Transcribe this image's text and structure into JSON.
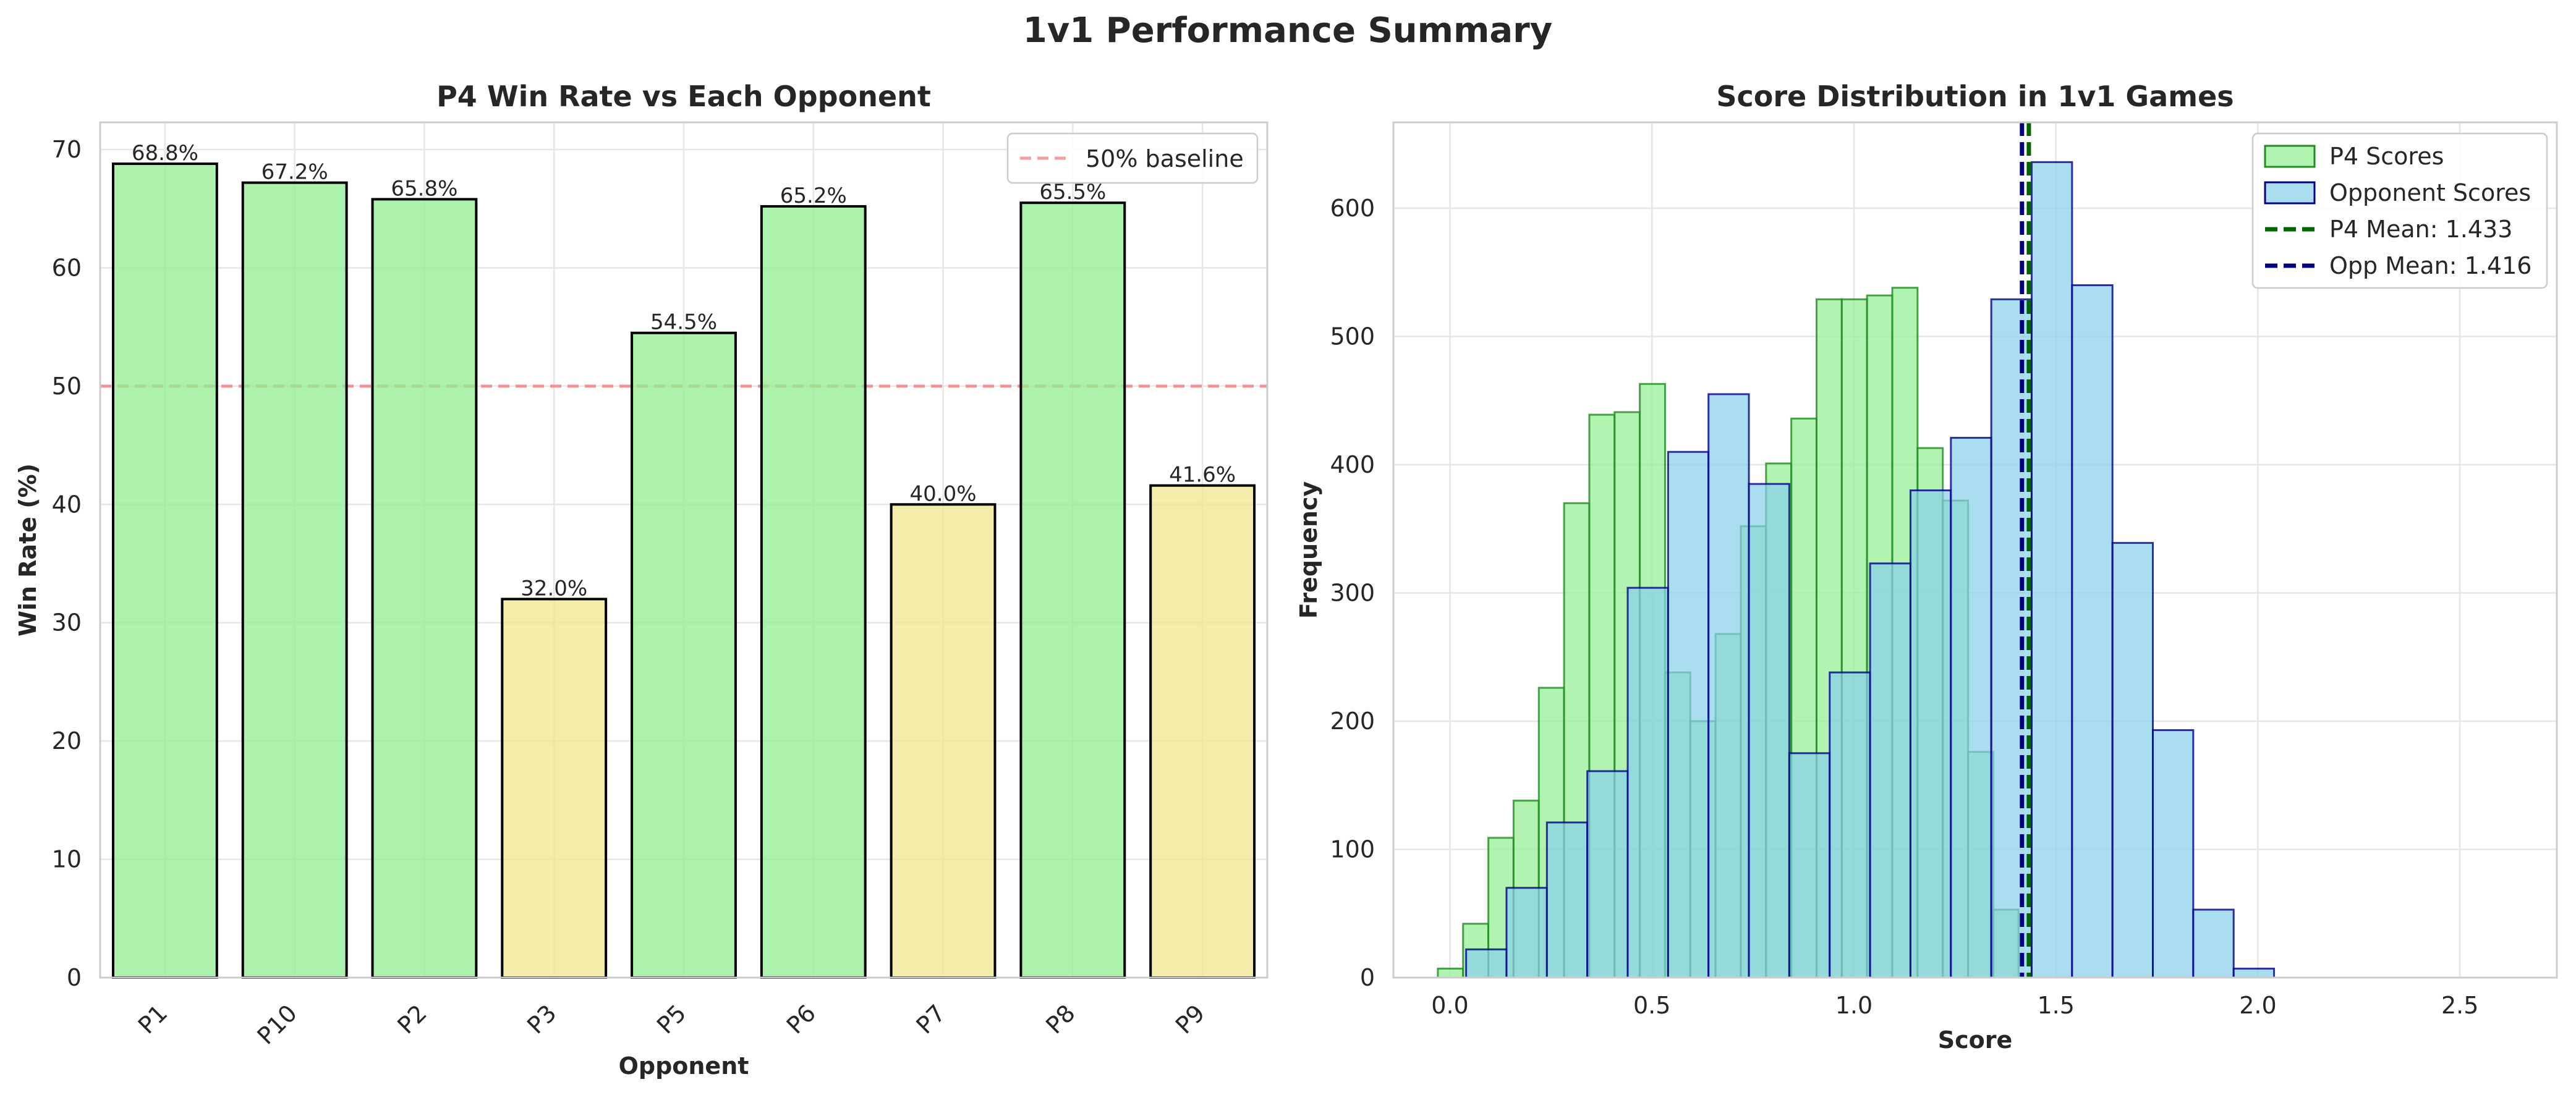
{
  "figure": {
    "title": "1v1 Performance Summary"
  },
  "chart_data": [
    {
      "type": "bar",
      "title": "P4 Win Rate vs Each Opponent",
      "xlabel": "Opponent",
      "ylabel": "Win Rate (%)",
      "categories": [
        "P1",
        "P10",
        "P2",
        "P3",
        "P5",
        "P6",
        "P7",
        "P8",
        "P9"
      ],
      "values": [
        68.8,
        67.2,
        65.8,
        32.0,
        54.5,
        65.2,
        40.0,
        65.5,
        41.6
      ],
      "value_labels": [
        "68.8%",
        "67.2%",
        "65.8%",
        "32.0%",
        "54.5%",
        "65.2%",
        "40.0%",
        "65.5%",
        "41.6%"
      ],
      "ylim": [
        0,
        72.3
      ],
      "yticks": [
        0,
        10,
        20,
        30,
        40,
        50,
        60,
        70
      ],
      "baseline": {
        "value": 50,
        "label": "50% baseline",
        "color": "#f08080"
      },
      "colors": {
        "above": "#90ee90",
        "below": "#f0e68c",
        "edge": "#000000"
      },
      "grid": true,
      "legend_position": "top-right"
    },
    {
      "type": "histogram",
      "title": "Score Distribution in 1v1 Games",
      "xlabel": "Score",
      "ylabel": "Frequency",
      "xlim": [
        -0.14,
        2.74
      ],
      "ylim": [
        0,
        667
      ],
      "xticks": [
        0.0,
        0.5,
        1.0,
        1.5,
        2.0,
        2.5
      ],
      "xtick_labels": [
        "0.0",
        "0.5",
        "1.0",
        "1.5",
        "2.0",
        "2.5"
      ],
      "yticks": [
        0,
        100,
        200,
        300,
        400,
        500,
        600
      ],
      "grid": true,
      "legend_position": "top-right",
      "series": [
        {
          "name": "P4 Scores",
          "fill": "#90ee90",
          "edge": "#228b22",
          "bin_start": -0.03,
          "bin_width": 0.0625,
          "counts": [
            7,
            42,
            109,
            138,
            226,
            370,
            439,
            441,
            463,
            238,
            200,
            268,
            352,
            401,
            436,
            529,
            529,
            532,
            538,
            413,
            372,
            176,
            53
          ]
        },
        {
          "name": "Opponent Scores",
          "fill": "#87ceeb",
          "edge": "#00008b",
          "bin_start": 0.04,
          "bin_width": 0.1,
          "counts": [
            22,
            70,
            121,
            161,
            304,
            410,
            455,
            385,
            175,
            238,
            323,
            380,
            421,
            529,
            636,
            540,
            339,
            193,
            53,
            7
          ]
        }
      ],
      "mean_lines": [
        {
          "name": "P4 Mean: 1.433",
          "value": 1.433,
          "color": "#006400"
        },
        {
          "name": "Opp Mean: 1.416",
          "value": 1.416,
          "color": "#000080"
        }
      ]
    }
  ]
}
